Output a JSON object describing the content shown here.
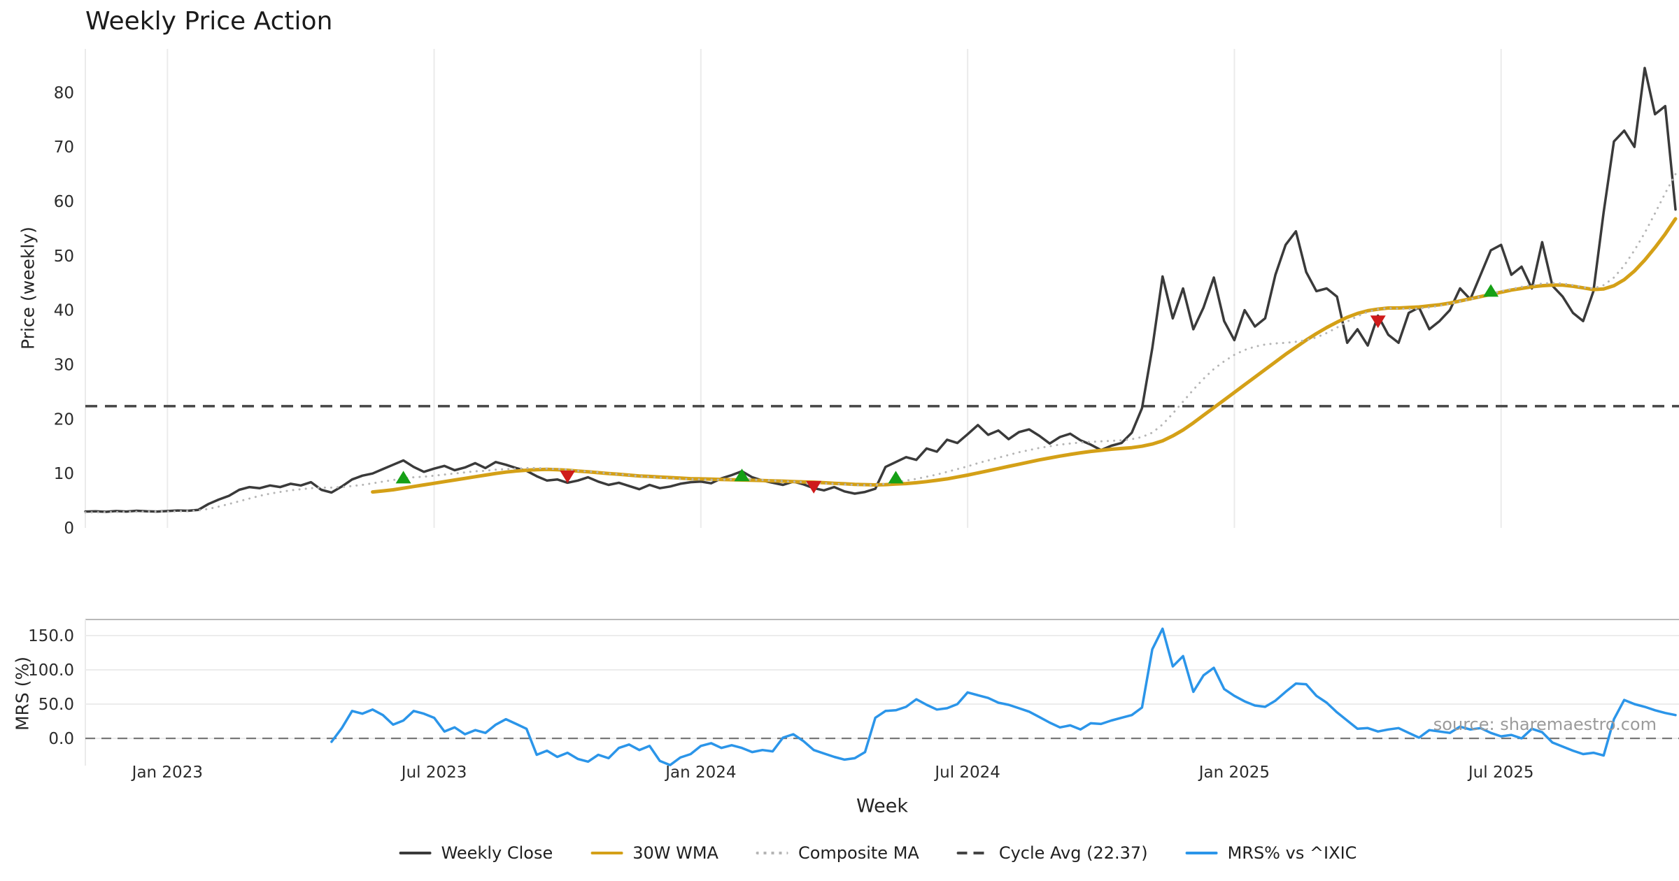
{
  "title": "Weekly Price Action",
  "watermark": "source: sharemaestro.com",
  "axes": {
    "xlabel": "Week",
    "price_ylabel": "Price (weekly)",
    "mrs_ylabel": "MRS (%)",
    "price_yticks": [
      0,
      10,
      20,
      30,
      40,
      50,
      60,
      70,
      80
    ],
    "mrs_yticks": [
      0,
      50,
      100,
      150
    ],
    "mrs_ytick_labels": [
      "0.0",
      "50.0",
      "100.0",
      "150.0"
    ],
    "xticks": [
      {
        "week": 8,
        "label": "Jan 2023"
      },
      {
        "week": 34,
        "label": "Jul 2023"
      },
      {
        "week": 60,
        "label": "Jan 2024"
      },
      {
        "week": 86,
        "label": "Jul 2024"
      },
      {
        "week": 112,
        "label": "Jan 2025"
      },
      {
        "week": 138,
        "label": "Jul 2025"
      }
    ]
  },
  "legend": {
    "items": [
      {
        "label": "Weekly Close",
        "color": "#3a3a3a",
        "style": "solid"
      },
      {
        "label": "30W WMA",
        "color": "#d4a017",
        "style": "solid"
      },
      {
        "label": "Composite MA",
        "color": "#b5b5b5",
        "style": "dotted"
      },
      {
        "label": "Cycle Avg (22.37)",
        "color": "#454545",
        "style": "dashed"
      },
      {
        "label": "MRS% vs ^IXIC",
        "color": "#2b95e9",
        "style": "solid"
      }
    ]
  },
  "chart_data": {
    "type": "line",
    "x_unit": "weekly index 0-155 (approx Nov 2022 - Oct 2025)",
    "price_ylim": [
      0,
      88
    ],
    "mrs_ylim": [
      -40,
      172
    ],
    "cycle_avg": 22.37,
    "grid": "vertical gridlines on price panel, horizontal gridlines on MRS panel",
    "legend_position": "bottom center",
    "marker_colors": {
      "buy": "#16a016",
      "sell": "#cf1b1b"
    },
    "markers": {
      "buy": [
        {
          "week": 31,
          "price": 9.2
        },
        {
          "week": 64,
          "price": 9.6
        },
        {
          "week": 79,
          "price": 9.2
        },
        {
          "week": 137,
          "price": 43.5
        }
      ],
      "sell": [
        {
          "week": 47,
          "price": 9.5
        },
        {
          "week": 71,
          "price": 7.6
        },
        {
          "week": 126,
          "price": 38.0
        }
      ]
    },
    "series": [
      {
        "id": "weekly_close",
        "name": "Weekly Close",
        "panel": "price",
        "color": "#3a3a3a",
        "style": "solid",
        "width": 3.5,
        "values": [
          3.0,
          3.05,
          2.95,
          3.1,
          3.0,
          3.15,
          3.05,
          3.0,
          3.1,
          3.2,
          3.15,
          3.3,
          4.4,
          5.2,
          5.9,
          7.0,
          7.5,
          7.3,
          7.8,
          7.5,
          8.1,
          7.8,
          8.4,
          7.0,
          6.5,
          7.6,
          8.9,
          9.6,
          10.0,
          10.8,
          11.6,
          12.4,
          11.2,
          10.3,
          10.9,
          11.4,
          10.6,
          11.1,
          11.9,
          11.0,
          12.1,
          11.6,
          11.0,
          10.5,
          9.5,
          8.7,
          8.9,
          8.3,
          8.7,
          9.3,
          8.5,
          7.9,
          8.3,
          7.7,
          7.1,
          7.9,
          7.3,
          7.6,
          8.1,
          8.4,
          8.5,
          8.2,
          9.1,
          9.7,
          10.4,
          9.3,
          8.7,
          8.3,
          7.9,
          8.5,
          8.0,
          7.3,
          6.9,
          7.5,
          6.7,
          6.3,
          6.6,
          7.2,
          11.2,
          12.1,
          13.0,
          12.5,
          14.6,
          14.0,
          16.2,
          15.6,
          17.2,
          18.9,
          17.1,
          17.9,
          16.3,
          17.6,
          18.1,
          16.9,
          15.5,
          16.7,
          17.3,
          16.1,
          15.3,
          14.3,
          15.1,
          15.6,
          17.5,
          22.0,
          33.0,
          46.2,
          38.5,
          44.0,
          36.5,
          40.5,
          46.0,
          38.0,
          34.5,
          40.0,
          37.0,
          38.5,
          46.5,
          52.0,
          54.5,
          47.0,
          43.5,
          44.0,
          42.5,
          34.0,
          36.5,
          33.5,
          39.0,
          35.5,
          34.0,
          39.5,
          40.5,
          36.5,
          38.0,
          40.0,
          44.0,
          42.0,
          46.5,
          51.0,
          52.0,
          46.5,
          48.0,
          44.0,
          52.5,
          44.5,
          42.5,
          39.5,
          38.0,
          43.5,
          58.0,
          71.0,
          73.0,
          70.0,
          84.5,
          76.0,
          77.5,
          58.5
        ]
      },
      {
        "id": "wma_30w",
        "name": "30W WMA",
        "panel": "price",
        "color": "#d4a017",
        "style": "solid",
        "width": 5,
        "values": [
          null,
          null,
          null,
          null,
          null,
          null,
          null,
          null,
          null,
          null,
          null,
          null,
          null,
          null,
          null,
          null,
          null,
          null,
          null,
          null,
          null,
          null,
          null,
          null,
          null,
          null,
          null,
          null,
          6.6,
          6.8,
          7.0,
          7.3,
          7.6,
          7.9,
          8.2,
          8.5,
          8.8,
          9.1,
          9.4,
          9.7,
          10.0,
          10.25,
          10.45,
          10.6,
          10.7,
          10.75,
          10.7,
          10.6,
          10.45,
          10.3,
          10.15,
          10.0,
          9.85,
          9.7,
          9.55,
          9.45,
          9.35,
          9.25,
          9.15,
          9.05,
          9.0,
          8.95,
          8.9,
          8.85,
          8.8,
          8.75,
          8.7,
          8.65,
          8.6,
          8.5,
          8.45,
          8.4,
          8.3,
          8.2,
          8.1,
          8.0,
          7.95,
          7.9,
          7.95,
          8.05,
          8.15,
          8.3,
          8.5,
          8.75,
          9.0,
          9.35,
          9.7,
          10.1,
          10.5,
          10.9,
          11.3,
          11.7,
          12.1,
          12.5,
          12.85,
          13.2,
          13.5,
          13.8,
          14.05,
          14.25,
          14.45,
          14.6,
          14.75,
          15.0,
          15.4,
          16.0,
          16.9,
          18.0,
          19.3,
          20.7,
          22.1,
          23.5,
          24.9,
          26.3,
          27.7,
          29.1,
          30.5,
          31.9,
          33.2,
          34.5,
          35.7,
          36.8,
          37.8,
          38.7,
          39.4,
          39.9,
          40.2,
          40.4,
          40.4,
          40.5,
          40.6,
          40.8,
          41.0,
          41.3,
          41.7,
          42.1,
          42.5,
          42.9,
          43.3,
          43.7,
          44.0,
          44.3,
          44.5,
          44.6,
          44.6,
          44.4,
          44.1,
          43.8,
          43.9,
          44.5,
          45.6,
          47.2,
          49.2,
          51.5,
          54.0,
          56.8
        ]
      },
      {
        "id": "composite_ma",
        "name": "Composite MA",
        "panel": "price",
        "color": "#b5b5b5",
        "style": "dotted",
        "width": 3,
        "values": [
          2.85,
          2.87,
          2.9,
          2.92,
          2.95,
          2.97,
          3.0,
          3.0,
          3.02,
          3.05,
          3.1,
          3.2,
          3.5,
          3.9,
          4.4,
          4.9,
          5.4,
          5.9,
          6.3,
          6.6,
          6.9,
          7.1,
          7.3,
          7.4,
          7.4,
          7.5,
          7.7,
          7.9,
          8.2,
          8.5,
          8.8,
          9.1,
          9.3,
          9.4,
          9.6,
          9.8,
          10.0,
          10.2,
          10.4,
          10.5,
          10.7,
          10.8,
          10.9,
          11.0,
          11.0,
          10.9,
          10.8,
          10.7,
          10.5,
          10.35,
          10.2,
          10.0,
          9.85,
          9.7,
          9.5,
          9.4,
          9.25,
          9.1,
          9.0,
          8.95,
          8.9,
          8.85,
          8.85,
          8.9,
          8.9,
          8.85,
          8.8,
          8.7,
          8.6,
          8.5,
          8.4,
          8.3,
          8.2,
          8.1,
          8.0,
          7.9,
          7.85,
          7.9,
          8.1,
          8.4,
          8.7,
          9.0,
          9.4,
          9.8,
          10.3,
          10.8,
          11.3,
          11.9,
          12.4,
          12.9,
          13.4,
          13.9,
          14.3,
          14.7,
          15.0,
          15.3,
          15.5,
          15.7,
          15.8,
          15.9,
          16.0,
          16.1,
          16.3,
          16.7,
          17.5,
          19.0,
          21.0,
          23.2,
          25.4,
          27.4,
          29.2,
          30.6,
          31.8,
          32.7,
          33.3,
          33.7,
          33.9,
          34.0,
          34.2,
          34.5,
          35.0,
          35.8,
          36.8,
          37.9,
          38.9,
          39.7,
          40.2,
          40.4,
          40.3,
          40.2,
          40.3,
          40.5,
          40.8,
          41.2,
          41.6,
          42.0,
          42.5,
          43.0,
          43.5,
          43.9,
          44.3,
          44.6,
          44.9,
          45.0,
          44.9,
          44.6,
          44.2,
          44.0,
          44.6,
          46.0,
          48.2,
          51.0,
          54.2,
          57.8,
          61.5,
          65.0
        ]
      },
      {
        "id": "mrs",
        "name": "MRS% vs ^IXIC",
        "panel": "mrs",
        "color": "#2b95e9",
        "style": "solid",
        "width": 3.5,
        "values": [
          null,
          null,
          null,
          null,
          null,
          null,
          null,
          null,
          null,
          null,
          null,
          null,
          null,
          null,
          null,
          null,
          null,
          null,
          null,
          null,
          null,
          null,
          null,
          null,
          -5,
          15,
          40,
          36,
          42,
          34,
          20,
          26,
          40,
          36,
          30,
          10,
          16,
          6,
          12,
          8,
          20,
          28,
          21,
          14,
          -24,
          -18,
          -27,
          -21,
          -30,
          -34,
          -24,
          -29,
          -14,
          -9,
          -17,
          -11,
          -33,
          -39,
          -28,
          -23,
          -11,
          -7,
          -14,
          -10,
          -14,
          -20,
          -17,
          -19,
          1,
          6,
          -4,
          -17,
          -22,
          -27,
          -31,
          -29,
          -20,
          30,
          40,
          41,
          46,
          57,
          49,
          42,
          44,
          50,
          67,
          63,
          59,
          52,
          49,
          44,
          39,
          31,
          23,
          16,
          19,
          13,
          22,
          21,
          26,
          30,
          34,
          45,
          130,
          160,
          105,
          120,
          68,
          92,
          103,
          72,
          62,
          54,
          48,
          46,
          55,
          68,
          80,
          79,
          62,
          52,
          38,
          26,
          14,
          15,
          10,
          13,
          15,
          8,
          1,
          12,
          10,
          8,
          17,
          13,
          15,
          8,
          3,
          5,
          0,
          14,
          9,
          -6,
          -12,
          -18,
          -23,
          -21,
          -25,
          28,
          56,
          50,
          46,
          41,
          37,
          34
        ]
      }
    ]
  }
}
